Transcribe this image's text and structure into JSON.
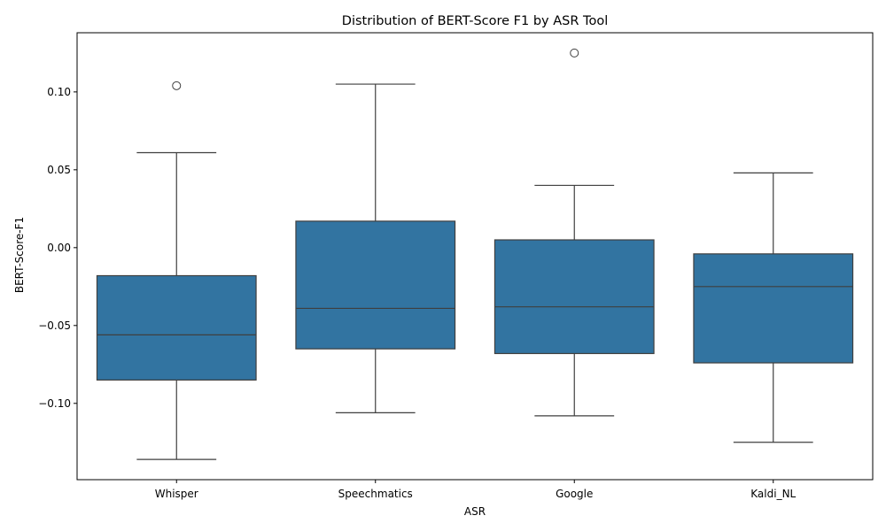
{
  "chart_data": {
    "type": "boxplot",
    "title": "Distribution of BERT-Score F1 by ASR Tool",
    "xlabel": "ASR",
    "ylabel": "BERT-Score-F1",
    "ylim": [
      -0.149,
      0.138
    ],
    "yticks": [
      -0.1,
      -0.05,
      0.0,
      0.05,
      0.1
    ],
    "ytick_labels": [
      "−0.10",
      "−0.05",
      "0.00",
      "0.05",
      "0.10"
    ],
    "grid": false,
    "legend": "none",
    "box_color": "#3274a1",
    "line_color": "#3f3f3f",
    "categories": [
      "Whisper",
      "Speechmatics",
      "Google",
      "Kaldi_NL"
    ],
    "boxes": [
      {
        "whisker_low": -0.136,
        "q1": -0.085,
        "median": -0.056,
        "q3": -0.018,
        "whisker_high": 0.061,
        "outliers": [
          0.104
        ]
      },
      {
        "whisker_low": -0.106,
        "q1": -0.065,
        "median": -0.039,
        "q3": 0.017,
        "whisker_high": 0.105,
        "outliers": []
      },
      {
        "whisker_low": -0.108,
        "q1": -0.068,
        "median": -0.038,
        "q3": 0.005,
        "whisker_high": 0.04,
        "outliers": [
          0.125
        ]
      },
      {
        "whisker_low": -0.125,
        "q1": -0.074,
        "median": -0.025,
        "q3": -0.004,
        "whisker_high": 0.048,
        "outliers": []
      }
    ]
  }
}
